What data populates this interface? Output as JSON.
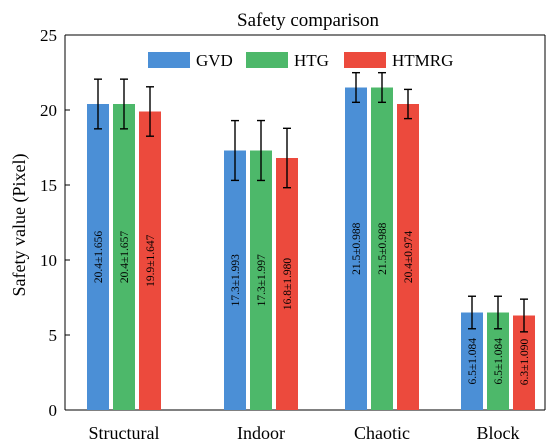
{
  "chart_data": {
    "type": "bar",
    "title": "Safety comparison",
    "xlabel": "",
    "ylabel": "Safety value (Pixel)",
    "ylim": [
      0,
      25
    ],
    "yticks": [
      "0",
      "5",
      "10",
      "15",
      "20",
      "25"
    ],
    "categories": [
      "Structural",
      "Indoor",
      "Chaotic",
      "Block"
    ],
    "legend_position": "top-center",
    "grid": false,
    "series": [
      {
        "name": "GVD",
        "color": "#4b8fd6",
        "values": [
          20.4,
          17.3,
          21.5,
          6.5
        ],
        "errors": [
          1.656,
          1.993,
          0.988,
          1.084
        ],
        "labels": [
          "20.4±1.656",
          "17.3±1.993",
          "21.5±0.988",
          "6.5±1.084"
        ]
      },
      {
        "name": "HTG",
        "color": "#4db86a",
        "values": [
          20.4,
          17.3,
          21.5,
          6.5
        ],
        "errors": [
          1.657,
          1.997,
          0.988,
          1.084
        ],
        "labels": [
          "20.4±1.657",
          "17.3±1.997",
          "21.5±0.988",
          "6.5±1.084"
        ]
      },
      {
        "name": "HTMRG",
        "color": "#ec4a3d",
        "values": [
          19.9,
          16.8,
          20.4,
          6.3
        ],
        "errors": [
          1.647,
          1.98,
          0.974,
          1.09
        ],
        "labels": [
          "19.9±1.647",
          "16.8±1.980",
          "20.4±0.974",
          "6.3±1.090"
        ]
      }
    ]
  }
}
